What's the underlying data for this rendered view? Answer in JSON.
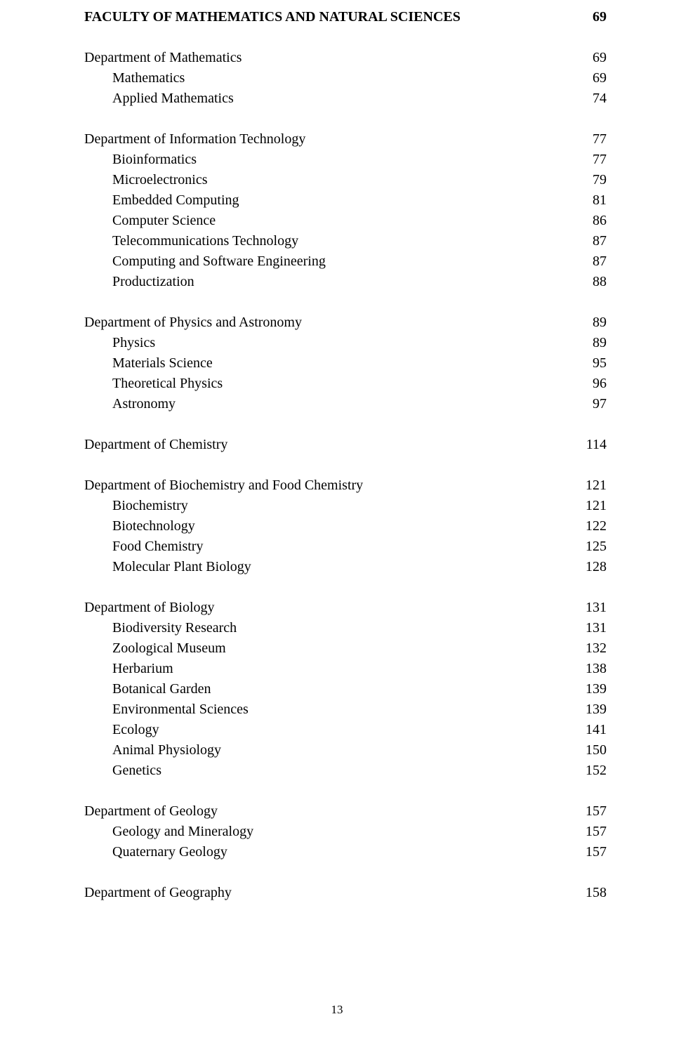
{
  "page_footer": "13",
  "toc": [
    {
      "label": "FACULTY OF MATHEMATICS AND NATURAL SCIENCES",
      "page": "69",
      "indent": 0,
      "bold": true
    },
    {
      "spacer": true
    },
    {
      "label": "Department of Mathematics",
      "page": "69",
      "indent": 0,
      "bold": false
    },
    {
      "label": "Mathematics",
      "page": "69",
      "indent": 1,
      "bold": false
    },
    {
      "label": "Applied Mathematics",
      "page": "74",
      "indent": 1,
      "bold": false
    },
    {
      "spacer": true
    },
    {
      "label": "Department of Information Technology",
      "page": "77",
      "indent": 0,
      "bold": false
    },
    {
      "label": "Bioinformatics",
      "page": "77",
      "indent": 1,
      "bold": false
    },
    {
      "label": "Microelectronics",
      "page": "79",
      "indent": 1,
      "bold": false
    },
    {
      "label": "Embedded Computing",
      "page": "81",
      "indent": 1,
      "bold": false
    },
    {
      "label": "Computer Science",
      "page": "86",
      "indent": 1,
      "bold": false
    },
    {
      "label": "Telecommunications Technology",
      "page": "87",
      "indent": 1,
      "bold": false
    },
    {
      "label": "Computing and Software Engineering",
      "page": "87",
      "indent": 1,
      "bold": false
    },
    {
      "label": "Productization",
      "page": "88",
      "indent": 1,
      "bold": false
    },
    {
      "spacer": true
    },
    {
      "label": "Department of Physics and Astronomy",
      "page": "89",
      "indent": 0,
      "bold": false
    },
    {
      "label": "Physics",
      "page": "89",
      "indent": 1,
      "bold": false
    },
    {
      "label": "Materials Science",
      "page": "95",
      "indent": 1,
      "bold": false
    },
    {
      "label": "Theoretical Physics",
      "page": "96",
      "indent": 1,
      "bold": false
    },
    {
      "label": "Astronomy",
      "page": "97",
      "indent": 1,
      "bold": false
    },
    {
      "spacer": true
    },
    {
      "label": "Department of Chemistry",
      "page": "114",
      "indent": 0,
      "bold": false
    },
    {
      "spacer": true
    },
    {
      "label": "Department of Biochemistry and Food Chemistry",
      "page": "121",
      "indent": 0,
      "bold": false
    },
    {
      "label": "Biochemistry",
      "page": "121",
      "indent": 1,
      "bold": false
    },
    {
      "label": "Biotechnology",
      "page": "122",
      "indent": 1,
      "bold": false
    },
    {
      "label": "Food Chemistry",
      "page": "125",
      "indent": 1,
      "bold": false
    },
    {
      "label": "Molecular Plant Biology",
      "page": "128",
      "indent": 1,
      "bold": false
    },
    {
      "spacer": true
    },
    {
      "label": "Department of Biology",
      "page": "131",
      "indent": 0,
      "bold": false
    },
    {
      "label": "Biodiversity Research",
      "page": "131",
      "indent": 1,
      "bold": false
    },
    {
      "label": "Zoological Museum",
      "page": "132",
      "indent": 1,
      "bold": false
    },
    {
      "label": "Herbarium",
      "page": "138",
      "indent": 1,
      "bold": false
    },
    {
      "label": "Botanical Garden",
      "page": "139",
      "indent": 1,
      "bold": false
    },
    {
      "label": "Environmental Sciences",
      "page": "139",
      "indent": 1,
      "bold": false
    },
    {
      "label": "Ecology",
      "page": "141",
      "indent": 1,
      "bold": false
    },
    {
      "label": "Animal Physiology",
      "page": "150",
      "indent": 1,
      "bold": false
    },
    {
      "label": "Genetics",
      "page": "152",
      "indent": 1,
      "bold": false
    },
    {
      "spacer": true
    },
    {
      "label": "Department of Geology",
      "page": "157",
      "indent": 0,
      "bold": false
    },
    {
      "label": "Geology and Mineralogy",
      "page": "157",
      "indent": 1,
      "bold": false
    },
    {
      "label": "Quaternary Geology",
      "page": "157",
      "indent": 1,
      "bold": false
    },
    {
      "spacer": true
    },
    {
      "label": "Department of Geography",
      "page": "158",
      "indent": 0,
      "bold": false
    }
  ]
}
